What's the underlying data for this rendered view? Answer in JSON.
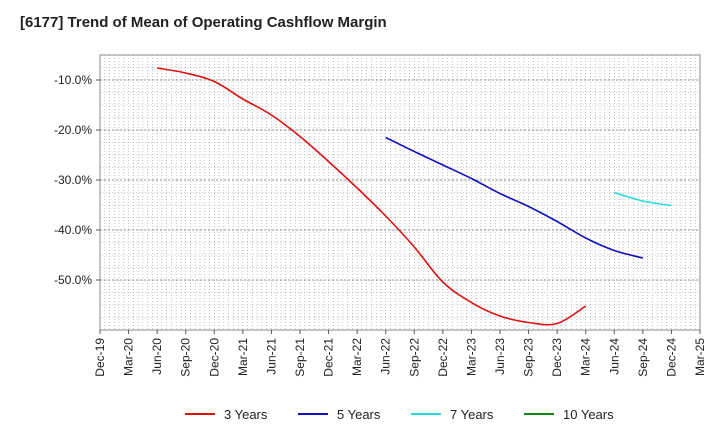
{
  "chart_data": {
    "type": "line",
    "title": "[6177]  Trend of Mean of Operating Cashflow Margin",
    "xlabel": "",
    "ylabel": "",
    "ylim": [
      -60,
      -5
    ],
    "yticks": [
      -10,
      -20,
      -30,
      -40,
      -50
    ],
    "ytick_labels": [
      "-10.0%",
      "-20.0%",
      "-30.0%",
      "-40.0%",
      "-50.0%"
    ],
    "categories": [
      "Dec-19",
      "Mar-20",
      "Jun-20",
      "Sep-20",
      "Dec-20",
      "Mar-21",
      "Jun-21",
      "Sep-21",
      "Dec-21",
      "Mar-22",
      "Jun-22",
      "Sep-22",
      "Dec-22",
      "Mar-23",
      "Jun-23",
      "Sep-23",
      "Dec-23",
      "Mar-24",
      "Jun-24",
      "Sep-24",
      "Dec-24",
      "Mar-25"
    ],
    "grid": true,
    "legend_position": "bottom",
    "series": [
      {
        "name": "3 Years",
        "color": "#dd1111",
        "values": [
          null,
          null,
          -7.6,
          -8.6,
          -10.3,
          -13.8,
          -17.0,
          -21.3,
          -26.3,
          -31.6,
          -37.2,
          -43.4,
          -50.4,
          -54.5,
          -57.2,
          -58.5,
          -58.7,
          -55.2,
          null,
          null,
          null,
          null
        ]
      },
      {
        "name": "5 Years",
        "color": "#1111bb",
        "values": [
          null,
          null,
          null,
          null,
          null,
          null,
          null,
          null,
          null,
          null,
          -21.5,
          -24.3,
          -27.0,
          -29.7,
          -32.7,
          -35.3,
          -38.3,
          -41.6,
          -44.1,
          -45.6,
          null,
          null
        ]
      },
      {
        "name": "7 Years",
        "color": "#22dddd",
        "values": [
          null,
          null,
          null,
          null,
          null,
          null,
          null,
          null,
          null,
          null,
          null,
          null,
          null,
          null,
          null,
          null,
          null,
          null,
          -32.5,
          -34.2,
          -35.1,
          null
        ]
      },
      {
        "name": "10 Years",
        "color": "#118811",
        "values": [
          null,
          null,
          null,
          null,
          null,
          null,
          null,
          null,
          null,
          null,
          null,
          null,
          null,
          null,
          null,
          null,
          null,
          null,
          null,
          null,
          null,
          null
        ]
      }
    ]
  }
}
